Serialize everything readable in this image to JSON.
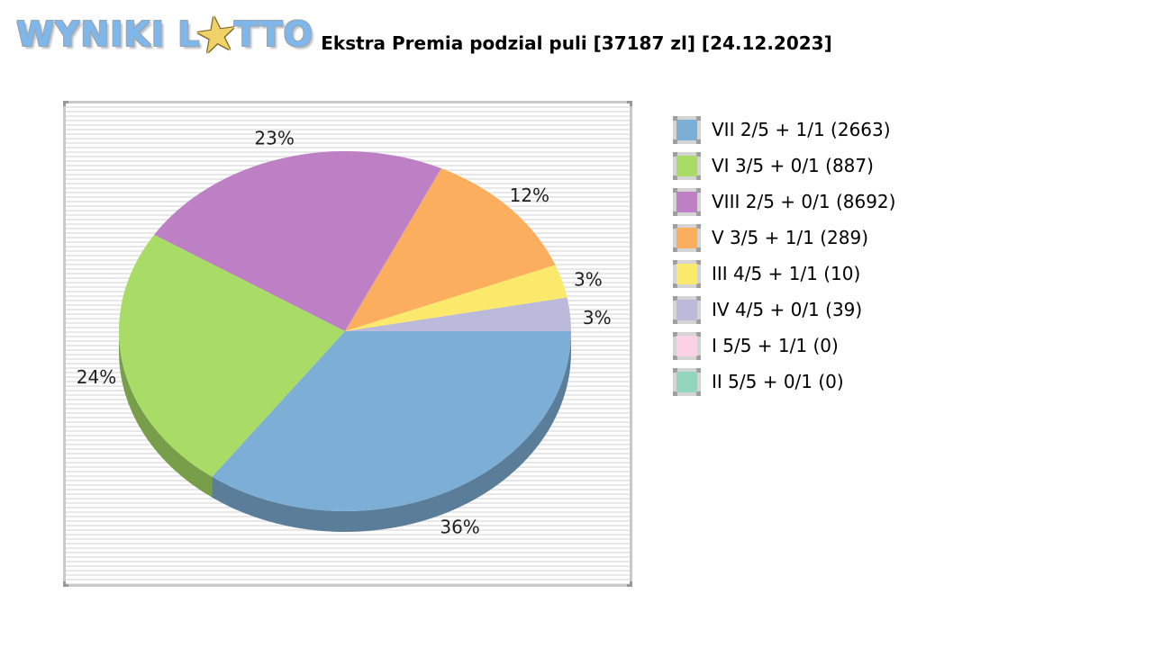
{
  "logo": {
    "word1": "WYNIKI",
    "word2_prefix": "L",
    "star_glyph": "★",
    "word2_suffix": "TTO",
    "brand_blue": "#7db7ec",
    "star_yellow": "#f0d269"
  },
  "chart_data": {
    "type": "pie",
    "style": "3d",
    "title": "Ekstra Premia podzial puli [37187 zl] [24.12.2023]",
    "legend_position": "right",
    "grid": "striped-background",
    "start_angle_deg": 0,
    "direction": "counterclockwise",
    "slices": [
      {
        "label": "VII 2/5 + 1/1 (2663)",
        "pct": 36,
        "color": "#7dafd6"
      },
      {
        "label": "VI 3/5 + 0/1 (887)",
        "pct": 24,
        "color": "#a8dc66"
      },
      {
        "label": "VIII 2/5 + 0/1 (8692)",
        "pct": 23,
        "color": "#bd80c5"
      },
      {
        "label": "V 3/5 + 1/1 (289)",
        "pct": 12,
        "color": "#fbae5e"
      },
      {
        "label": "III 4/5 + 1/1 (10)",
        "pct": 3,
        "color": "#fae96a"
      },
      {
        "label": "IV 4/5 + 0/1 (39)",
        "pct": 3,
        "color": "#bcbada"
      },
      {
        "label": "I 5/5 + 1/1 (0)",
        "pct": 0,
        "color": "#fcd1e6"
      },
      {
        "label": "II 5/5 + 0/1 (0)",
        "pct": 0,
        "color": "#93d5bd"
      }
    ],
    "pct_label_suffix": "%"
  }
}
